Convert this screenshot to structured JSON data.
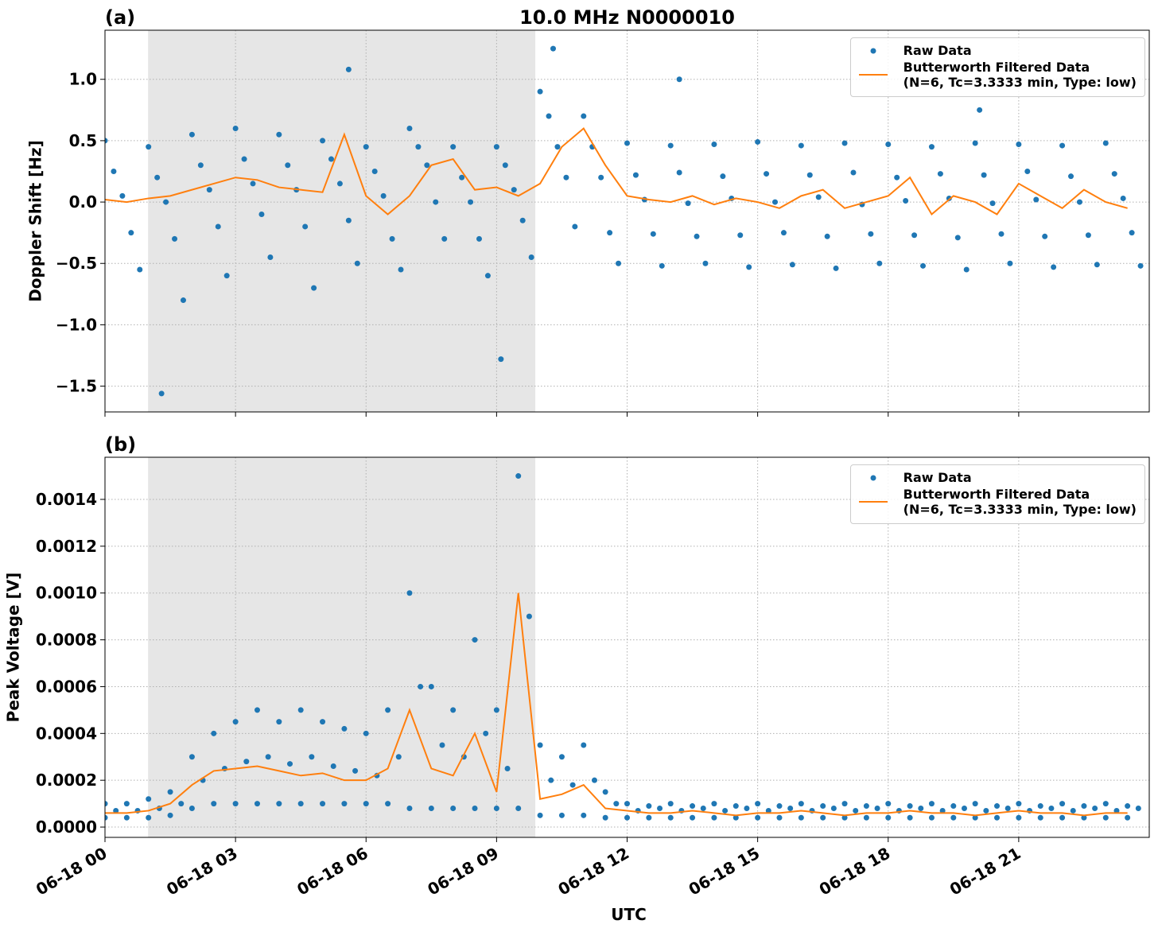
{
  "chart_data": [
    {
      "type": "scatter",
      "panel_label": "(a)",
      "title": "10.0 MHz N0000010",
      "y_label": "Doppler Shift [Hz]",
      "xlim": [
        0,
        24
      ],
      "xticks": [
        0,
        3,
        6,
        9,
        12,
        15,
        18,
        21
      ],
      "ylim": [
        -1.71,
        1.4
      ],
      "yticks": [
        {
          "value": -1.5,
          "label": "−1.5"
        },
        {
          "value": -1.0,
          "label": "−1.0"
        },
        {
          "value": -0.5,
          "label": "−0.5"
        },
        {
          "value": 0.0,
          "label": "0.0"
        },
        0.5,
        {
          "value": 1.0,
          "label": "1.0"
        }
      ],
      "grid": true,
      "legend": "upper right",
      "shade": [
        0.99,
        9.89
      ],
      "shade_color": "#e6e6e6",
      "series": [
        {
          "name": "Raw Data",
          "type": "scatter",
          "color": "#1f77b4",
          "x": [
            0,
            0.2,
            0.4,
            0.6,
            0.8,
            1,
            1.2,
            1.4,
            1.6,
            1.8,
            2,
            2.2,
            2.4,
            2.6,
            2.8,
            3,
            3.2,
            3.4,
            3.6,
            3.8,
            4,
            4.2,
            4.4,
            4.6,
            4.8,
            5,
            5.2,
            5.4,
            5.6,
            5.8,
            6,
            6.2,
            6.4,
            6.6,
            6.8,
            7,
            7.2,
            7.4,
            7.6,
            7.8,
            8,
            8.2,
            8.4,
            8.6,
            8.8,
            9,
            9.2,
            9.4,
            9.6,
            9.8,
            10,
            10.2,
            10.4,
            10.6,
            10.8,
            11,
            11.2,
            11.4,
            11.6,
            11.8,
            12,
            12.2,
            12.4,
            12.6,
            12.8,
            13,
            13.2,
            13.4,
            13.6,
            13.8,
            14,
            14.2,
            14.4,
            14.6,
            14.8,
            15,
            15.2,
            15.4,
            15.6,
            15.8,
            16,
            16.2,
            16.4,
            16.6,
            16.8,
            17,
            17.2,
            17.4,
            17.6,
            17.8,
            18,
            18.2,
            18.4,
            18.6,
            18.8,
            19,
            19.2,
            19.4,
            19.6,
            19.8,
            20,
            20.2,
            20.4,
            20.6,
            20.8,
            21,
            21.2,
            21.4,
            21.6,
            21.8,
            22,
            22.2,
            22.4,
            22.6,
            22.8,
            23,
            23.2,
            23.4,
            23.6,
            23.8,
            1.3,
            9.1,
            5.6,
            10.3,
            13.2,
            20.1
          ],
          "values": [
            0.5,
            0.25,
            0.05,
            -0.25,
            -0.55,
            0.45,
            0.2,
            0.0,
            -0.3,
            -0.8,
            0.55,
            0.3,
            0.1,
            -0.2,
            -0.6,
            0.6,
            0.35,
            0.15,
            -0.1,
            -0.45,
            0.55,
            0.3,
            0.1,
            -0.2,
            -0.7,
            0.5,
            0.35,
            0.15,
            -0.15,
            -0.5,
            0.45,
            0.25,
            0.05,
            -0.3,
            -0.55,
            0.6,
            0.45,
            0.3,
            0.0,
            -0.3,
            0.45,
            0.2,
            0.0,
            -0.3,
            -0.6,
            0.45,
            0.3,
            0.1,
            -0.15,
            -0.45,
            0.9,
            0.7,
            0.45,
            0.2,
            -0.2,
            0.7,
            0.45,
            0.2,
            -0.25,
            -0.5,
            0.48,
            0.22,
            0.02,
            -0.26,
            -0.52,
            0.46,
            0.24,
            -0.01,
            -0.28,
            -0.5,
            0.47,
            0.21,
            0.03,
            -0.27,
            -0.53,
            0.49,
            0.23,
            0.0,
            -0.25,
            -0.51,
            0.46,
            0.22,
            0.04,
            -0.28,
            -0.54,
            0.48,
            0.24,
            -0.02,
            -0.26,
            -0.5,
            0.47,
            0.2,
            0.01,
            -0.27,
            -0.52,
            0.45,
            0.23,
            0.03,
            -0.29,
            -0.55,
            0.48,
            0.22,
            -0.01,
            -0.26,
            -0.5,
            0.47,
            0.25,
            0.02,
            -0.28,
            -0.53,
            0.46,
            0.21,
            0.0,
            -0.27,
            -0.51,
            0.48,
            0.23,
            0.03,
            -0.25,
            -0.52,
            -1.56,
            -1.28,
            1.08,
            1.25,
            1.0,
            0.75
          ]
        },
        {
          "name": "Butterworth Filtered Data\n(N=6, Tc=3.3333 min, Type: low)",
          "type": "line",
          "color": "#ff7f0e",
          "x": [
            0,
            0.5,
            1,
            1.5,
            2,
            2.5,
            3,
            3.5,
            4,
            4.5,
            5,
            5.5,
            6,
            6.5,
            7,
            7.5,
            8,
            8.5,
            9,
            9.5,
            10,
            10.5,
            11,
            11.5,
            12,
            12.5,
            13,
            13.5,
            14,
            14.5,
            15,
            15.5,
            16,
            16.5,
            17,
            17.5,
            18,
            18.5,
            19,
            19.5,
            20,
            20.5,
            21,
            21.5,
            22,
            22.5,
            23,
            23.5
          ],
          "values": [
            0.02,
            0.0,
            0.03,
            0.05,
            0.1,
            0.15,
            0.2,
            0.18,
            0.12,
            0.1,
            0.08,
            0.55,
            0.05,
            -0.1,
            0.05,
            0.3,
            0.35,
            0.1,
            0.12,
            0.05,
            0.15,
            0.45,
            0.6,
            0.3,
            0.05,
            0.02,
            0.0,
            0.05,
            -0.02,
            0.03,
            0.0,
            -0.05,
            0.05,
            0.1,
            -0.05,
            0.0,
            0.05,
            0.2,
            -0.1,
            0.05,
            0.0,
            -0.1,
            0.15,
            0.05,
            -0.05,
            0.1,
            0.0,
            -0.05
          ]
        }
      ]
    },
    {
      "type": "scatter",
      "panel_label": "(b)",
      "y_label": "Peak Voltage [V]",
      "x_label": "UTC",
      "xlim": [
        0,
        24
      ],
      "xticks": [
        {
          "value": 0,
          "label": "06-18 00"
        },
        {
          "value": 3,
          "label": "06-18 03"
        },
        {
          "value": 6,
          "label": "06-18 06"
        },
        {
          "value": 9,
          "label": "06-18 09"
        },
        {
          "value": 12,
          "label": "06-18 12"
        },
        {
          "value": 15,
          "label": "06-18 15"
        },
        {
          "value": 18,
          "label": "06-18 18"
        },
        {
          "value": 21,
          "label": "06-18 21"
        }
      ],
      "ylim": [
        -4.4e-05,
        0.00158
      ],
      "yticks": [
        {
          "value": 0,
          "label": "0.0000"
        },
        0.0002,
        0.0004,
        0.0006,
        0.0008,
        {
          "value": 0.001,
          "label": "0.0010"
        },
        0.0012,
        0.0014
      ],
      "grid": true,
      "legend": "upper right",
      "shade": [
        0.99,
        9.89
      ],
      "shade_color": "#e6e6e6",
      "series": [
        {
          "name": "Raw Data",
          "type": "scatter",
          "color": "#1f77b4",
          "x": [
            0,
            0.5,
            1,
            1.5,
            2,
            2.5,
            3,
            3.5,
            4,
            4.5,
            5,
            5.5,
            6,
            6.5,
            7,
            7.5,
            8,
            8.5,
            9,
            9.5,
            10,
            10.5,
            11,
            11.5,
            12,
            12.5,
            13,
            13.5,
            14,
            14.5,
            15,
            15.5,
            16,
            16.5,
            17,
            17.5,
            18,
            18.5,
            19,
            19.5,
            20,
            20.5,
            21,
            21.5,
            22,
            22.5,
            23,
            23.5,
            0.25,
            0.75,
            1.25,
            1.75,
            2.25,
            2.75,
            3.25,
            3.75,
            4.25,
            4.75,
            5.25,
            5.75,
            6.25,
            6.75,
            7.25,
            7.75,
            8.25,
            8.75,
            9.25,
            9.75,
            10.25,
            10.75,
            11.25,
            11.75,
            12.25,
            12.75,
            13.25,
            13.75,
            14.25,
            14.75,
            15.25,
            15.75,
            16.25,
            16.75,
            17.25,
            17.75,
            18.25,
            18.75,
            19.25,
            19.75,
            20.25,
            20.75,
            21.25,
            21.75,
            22.25,
            22.75,
            23.25,
            23.75,
            0,
            0.5,
            1,
            1.5,
            2,
            2.5,
            3,
            3.5,
            4,
            4.5,
            5,
            5.5,
            6,
            6.5,
            7,
            7.5,
            8,
            8.5,
            9,
            9.5,
            10,
            10.5,
            11,
            11.5,
            12,
            12.5,
            13,
            13.5,
            14,
            14.5,
            15,
            15.5,
            16,
            16.5,
            17,
            17.5,
            18,
            18.5,
            19,
            19.5,
            20,
            20.5,
            21,
            21.5,
            22,
            22.5,
            23,
            23.5
          ],
          "values": [
            0.0001,
            0.0001,
            0.00012,
            0.00015,
            0.0003,
            0.0004,
            0.00045,
            0.0005,
            0.00045,
            0.0005,
            0.00045,
            0.00042,
            0.0004,
            0.0005,
            0.001,
            0.0006,
            0.0005,
            0.0008,
            0.0005,
            0.0015,
            0.00035,
            0.0003,
            0.00035,
            0.00015,
            0.0001,
            9e-05,
            0.0001,
            9e-05,
            0.0001,
            9e-05,
            0.0001,
            9e-05,
            0.0001,
            9e-05,
            0.0001,
            9e-05,
            0.0001,
            9e-05,
            0.0001,
            9e-05,
            0.0001,
            9e-05,
            0.0001,
            9e-05,
            0.0001,
            9e-05,
            0.0001,
            9e-05,
            7e-05,
            7e-05,
            8e-05,
            0.0001,
            0.0002,
            0.00025,
            0.00028,
            0.0003,
            0.00027,
            0.0003,
            0.00026,
            0.00024,
            0.00022,
            0.0003,
            0.0006,
            0.00035,
            0.0003,
            0.0004,
            0.00025,
            0.0009,
            0.0002,
            0.00018,
            0.0002,
            0.0001,
            7e-05,
            8e-05,
            7e-05,
            8e-05,
            7e-05,
            8e-05,
            7e-05,
            8e-05,
            7e-05,
            8e-05,
            7e-05,
            8e-05,
            7e-05,
            8e-05,
            7e-05,
            8e-05,
            7e-05,
            8e-05,
            7e-05,
            8e-05,
            7e-05,
            8e-05,
            7e-05,
            8e-05,
            4e-05,
            4e-05,
            4e-05,
            5e-05,
            8e-05,
            0.0001,
            0.0001,
            0.0001,
            0.0001,
            0.0001,
            0.0001,
            0.0001,
            0.0001,
            0.0001,
            8e-05,
            8e-05,
            8e-05,
            8e-05,
            8e-05,
            8e-05,
            5e-05,
            5e-05,
            5e-05,
            4e-05,
            4e-05,
            4e-05,
            4e-05,
            4e-05,
            4e-05,
            4e-05,
            4e-05,
            4e-05,
            4e-05,
            4e-05,
            4e-05,
            4e-05,
            4e-05,
            4e-05,
            4e-05,
            4e-05,
            4e-05,
            4e-05,
            4e-05,
            4e-05,
            4e-05,
            4e-05,
            4e-05,
            4e-05
          ]
        },
        {
          "name": "Butterworth Filtered Data\n(N=6, Tc=3.3333 min, Type: low)",
          "type": "line",
          "color": "#ff7f0e",
          "x": [
            0,
            0.5,
            1,
            1.5,
            2,
            2.5,
            3,
            3.5,
            4,
            4.5,
            5,
            5.5,
            6,
            6.5,
            7,
            7.5,
            8,
            8.5,
            9,
            9.5,
            10,
            10.5,
            11,
            11.5,
            12,
            12.5,
            13,
            13.5,
            14,
            14.5,
            15,
            15.5,
            16,
            16.5,
            17,
            17.5,
            18,
            18.5,
            19,
            19.5,
            20,
            20.5,
            21,
            21.5,
            22,
            22.5,
            23,
            23.5
          ],
          "values": [
            6e-05,
            6e-05,
            7e-05,
            0.0001,
            0.00018,
            0.00024,
            0.00025,
            0.00026,
            0.00024,
            0.00022,
            0.00023,
            0.0002,
            0.0002,
            0.00025,
            0.0005,
            0.00025,
            0.00022,
            0.0004,
            0.00015,
            0.001,
            0.00012,
            0.00014,
            0.00018,
            8e-05,
            7e-05,
            6e-05,
            6e-05,
            7e-05,
            6e-05,
            5e-05,
            6e-05,
            6e-05,
            7e-05,
            6e-05,
            5e-05,
            6e-05,
            6e-05,
            7e-05,
            6e-05,
            6e-05,
            5e-05,
            6e-05,
            7e-05,
            6e-05,
            6e-05,
            5e-05,
            6e-05,
            6e-05
          ]
        }
      ]
    }
  ]
}
